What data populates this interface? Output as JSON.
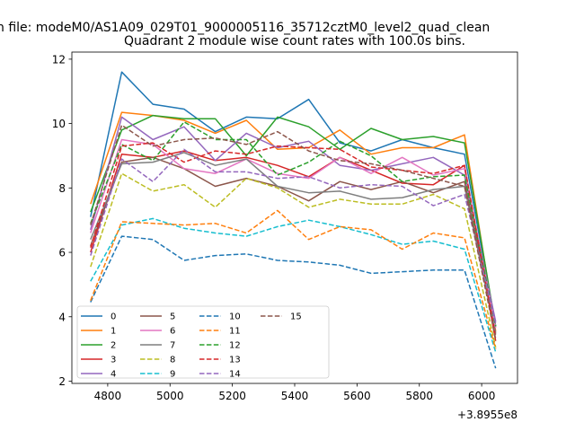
{
  "figure": {
    "suptitle": "n file: modeM0/AS1A09_029T01_9000005116_35712cztM0_level2_quad_clean",
    "title": "Quadrant 2 module wise count rates with 100.0s bins.",
    "x_offset_label": "+3.8955e8"
  },
  "chart_data": {
    "type": "line",
    "title": "Quadrant 2 module wise count rates with 100.0s bins.",
    "xlabel": "",
    "ylabel": "",
    "x_offset": 389550000,
    "xlim": [
      4685,
      6115
    ],
    "ylim": [
      1.93,
      12.22
    ],
    "xticks": [
      4800,
      5000,
      5200,
      5400,
      5600,
      5800,
      6000
    ],
    "xtick_labels": [
      "4800",
      "5000",
      "5200",
      "5400",
      "5600",
      "5800",
      "6000"
    ],
    "yticks": [
      2,
      4,
      6,
      8,
      10,
      12
    ],
    "ytick_labels": [
      "2",
      "4",
      "6",
      "8",
      "10",
      "12"
    ],
    "grid": false,
    "legend": {
      "placement": "lower-left",
      "columns": 4
    },
    "x": [
      4745,
      4845,
      4945,
      5045,
      5145,
      5245,
      5345,
      5445,
      5545,
      5645,
      5745,
      5845,
      5945,
      6045
    ],
    "series": [
      {
        "name": "0",
        "color": "#1f77b4",
        "dash": "solid",
        "values": [
          7.1,
          11.6,
          10.6,
          10.45,
          9.75,
          10.2,
          10.15,
          10.75,
          9.4,
          9.15,
          9.5,
          9.25,
          9.05,
          3.7
        ]
      },
      {
        "name": "1",
        "color": "#ff7f0e",
        "dash": "solid",
        "values": [
          7.5,
          10.35,
          10.25,
          10.1,
          9.7,
          10.1,
          9.2,
          9.25,
          9.8,
          9.05,
          9.25,
          9.25,
          9.65,
          3.55
        ]
      },
      {
        "name": "2",
        "color": "#2ca02c",
        "dash": "solid",
        "values": [
          7.25,
          9.8,
          10.25,
          10.15,
          10.15,
          9.0,
          10.2,
          9.9,
          9.2,
          9.85,
          9.5,
          9.6,
          9.4,
          3.7
        ]
      },
      {
        "name": "3",
        "color": "#d62728",
        "dash": "solid",
        "values": [
          6.0,
          9.05,
          8.95,
          9.15,
          8.85,
          8.95,
          8.7,
          8.35,
          8.95,
          8.55,
          8.15,
          8.1,
          8.7,
          3.25
        ]
      },
      {
        "name": "4",
        "color": "#9467bd",
        "dash": "solid",
        "values": [
          6.7,
          10.2,
          9.5,
          9.9,
          8.85,
          9.7,
          9.25,
          9.45,
          8.7,
          8.55,
          8.75,
          8.95,
          8.4,
          3.85
        ]
      },
      {
        "name": "5",
        "color": "#8c564b",
        "dash": "solid",
        "values": [
          6.2,
          8.8,
          8.95,
          8.6,
          8.05,
          8.3,
          8.05,
          7.6,
          8.2,
          7.95,
          8.2,
          7.85,
          8.2,
          3.5
        ]
      },
      {
        "name": "6",
        "color": "#e377c2",
        "dash": "solid",
        "values": [
          6.6,
          9.5,
          9.35,
          8.6,
          8.45,
          8.9,
          8.45,
          8.3,
          8.95,
          8.45,
          8.95,
          8.4,
          8.6,
          3.65
        ]
      },
      {
        "name": "7",
        "color": "#7f7f7f",
        "dash": "solid",
        "values": [
          6.4,
          8.75,
          8.8,
          9.1,
          8.7,
          8.9,
          8.05,
          7.85,
          7.9,
          7.65,
          7.7,
          7.95,
          8.05,
          3.45
        ]
      },
      {
        "name": "8",
        "color": "#bcbd22",
        "dash": "dashed",
        "values": [
          5.55,
          8.45,
          7.9,
          8.1,
          7.4,
          8.3,
          8.0,
          7.4,
          7.65,
          7.5,
          7.5,
          7.8,
          7.35,
          3.05
        ]
      },
      {
        "name": "9",
        "color": "#17becf",
        "dash": "dashed",
        "values": [
          5.1,
          6.85,
          7.05,
          6.75,
          6.6,
          6.5,
          6.8,
          7.0,
          6.8,
          6.55,
          6.25,
          6.35,
          6.1,
          2.9
        ]
      },
      {
        "name": "10",
        "color": "#1f77b4",
        "dash": "dashed",
        "values": [
          4.45,
          6.5,
          6.4,
          5.75,
          5.9,
          5.95,
          5.75,
          5.7,
          5.6,
          5.35,
          5.4,
          5.45,
          5.45,
          2.4
        ]
      },
      {
        "name": "11",
        "color": "#ff7f0e",
        "dash": "dashed",
        "values": [
          4.5,
          6.95,
          6.9,
          6.85,
          6.9,
          6.6,
          7.3,
          6.4,
          6.8,
          6.7,
          6.1,
          6.6,
          6.45,
          3.0
        ]
      },
      {
        "name": "12",
        "color": "#2ca02c",
        "dash": "dashed",
        "values": [
          6.9,
          9.35,
          8.85,
          10.05,
          9.5,
          9.5,
          8.4,
          8.8,
          9.45,
          9.0,
          8.2,
          8.35,
          8.4,
          3.7
        ]
      },
      {
        "name": "13",
        "color": "#d62728",
        "dash": "dashed",
        "values": [
          6.15,
          9.3,
          9.4,
          8.8,
          9.15,
          9.05,
          9.3,
          9.25,
          9.2,
          8.65,
          8.55,
          8.45,
          8.7,
          3.35
        ]
      },
      {
        "name": "14",
        "color": "#9467bd",
        "dash": "dashed",
        "values": [
          5.9,
          8.9,
          8.2,
          9.2,
          8.5,
          8.5,
          8.3,
          8.35,
          8.0,
          8.1,
          8.05,
          7.45,
          7.8,
          3.8
        ]
      },
      {
        "name": "15",
        "color": "#8c564b",
        "dash": "dashed",
        "values": [
          6.85,
          9.95,
          9.3,
          9.5,
          9.55,
          9.35,
          9.75,
          9.15,
          8.85,
          8.75,
          8.55,
          8.3,
          8.05,
          3.3
        ]
      }
    ]
  }
}
